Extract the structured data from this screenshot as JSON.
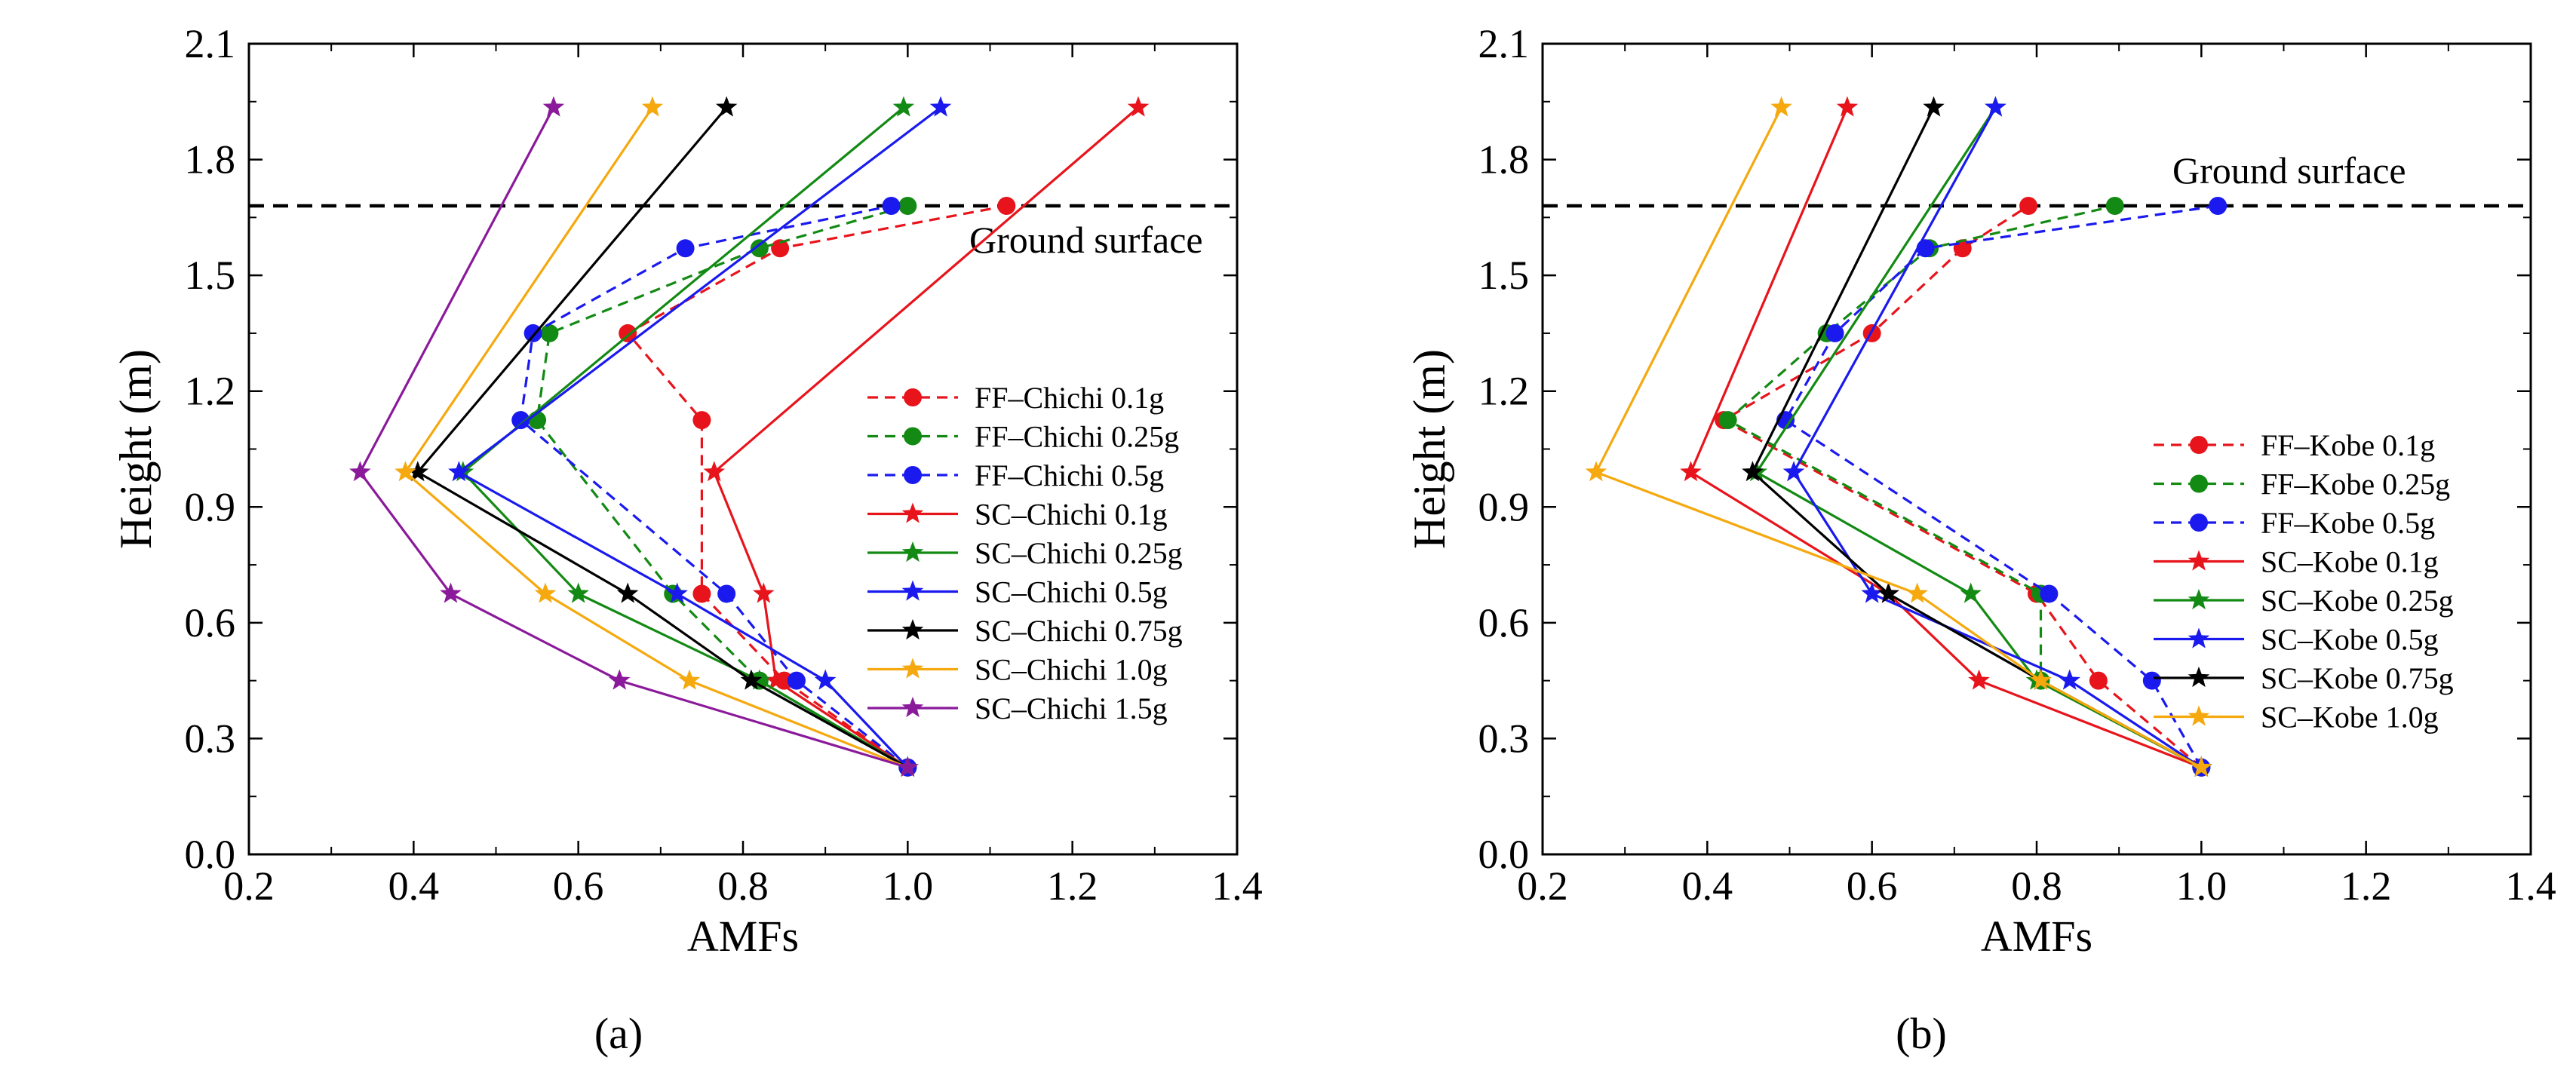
{
  "chart_data": [
    {
      "type": "line",
      "panel_label": "(a)",
      "xlabel": "AMFs",
      "ylabel": "Height (m)",
      "xlim": [
        0.2,
        1.4
      ],
      "ylim": [
        0.0,
        2.1
      ],
      "xticks": [
        "0.2",
        "0.4",
        "0.6",
        "0.8",
        "1.0",
        "1.2",
        "1.4"
      ],
      "yticks": [
        "0.0",
        "0.3",
        "0.6",
        "0.9",
        "1.2",
        "1.5",
        "1.8",
        "2.1"
      ],
      "grid": false,
      "legend_position": "right",
      "reference_line": {
        "y": 1.68,
        "label": "Ground surface"
      },
      "series": [
        {
          "name": "FF–Chichi 0.1g",
          "color": "#e8141c",
          "dashed": true,
          "marker": "circle",
          "points": [
            [
              1.0,
              0.225
            ],
            [
              0.85,
              0.45
            ],
            [
              0.75,
              0.675
            ],
            [
              0.75,
              1.125
            ],
            [
              0.66,
              1.35
            ],
            [
              0.845,
              1.57
            ],
            [
              1.12,
              1.68
            ]
          ]
        },
        {
          "name": "FF–Chichi 0.25g",
          "color": "#138a13",
          "dashed": true,
          "marker": "circle",
          "points": [
            [
              1.0,
              0.225
            ],
            [
              0.82,
              0.45
            ],
            [
              0.715,
              0.675
            ],
            [
              0.55,
              1.125
            ],
            [
              0.565,
              1.35
            ],
            [
              0.82,
              1.57
            ],
            [
              1.0,
              1.68
            ]
          ]
        },
        {
          "name": "FF–Chichi 0.5g",
          "color": "#1a1aef",
          "dashed": true,
          "marker": "circle",
          "points": [
            [
              1.0,
              0.225
            ],
            [
              0.865,
              0.45
            ],
            [
              0.78,
              0.675
            ],
            [
              0.53,
              1.125
            ],
            [
              0.545,
              1.35
            ],
            [
              0.73,
              1.57
            ],
            [
              0.98,
              1.68
            ]
          ]
        },
        {
          "name": "SC–Chichi 0.1g",
          "color": "#e8141c",
          "dashed": false,
          "marker": "star",
          "points": [
            [
              1.0,
              0.225
            ],
            [
              0.84,
              0.45
            ],
            [
              0.825,
              0.675
            ],
            [
              0.765,
              0.99
            ],
            [
              1.28,
              1.935
            ]
          ]
        },
        {
          "name": "SC–Chichi 0.25g",
          "color": "#138a13",
          "dashed": false,
          "marker": "star",
          "points": [
            [
              1.0,
              0.225
            ],
            [
              0.82,
              0.45
            ],
            [
              0.6,
              0.675
            ],
            [
              0.46,
              0.99
            ],
            [
              0.995,
              1.935
            ]
          ]
        },
        {
          "name": "SC–Chichi 0.5g",
          "color": "#1a1aef",
          "dashed": false,
          "marker": "star",
          "points": [
            [
              1.0,
              0.225
            ],
            [
              0.9,
              0.45
            ],
            [
              0.72,
              0.675
            ],
            [
              0.455,
              0.99
            ],
            [
              1.04,
              1.935
            ]
          ]
        },
        {
          "name": "SC–Chichi 0.75g",
          "color": "#000000",
          "dashed": false,
          "marker": "star",
          "points": [
            [
              1.0,
              0.225
            ],
            [
              0.81,
              0.45
            ],
            [
              0.66,
              0.675
            ],
            [
              0.405,
              0.99
            ],
            [
              0.78,
              1.935
            ]
          ]
        },
        {
          "name": "SC–Chichi 1.0g",
          "color": "#f5a90f",
          "dashed": false,
          "marker": "star",
          "points": [
            [
              1.0,
              0.225
            ],
            [
              0.735,
              0.45
            ],
            [
              0.56,
              0.675
            ],
            [
              0.39,
              0.99
            ],
            [
              0.69,
              1.935
            ]
          ]
        },
        {
          "name": "SC–Chichi 1.5g",
          "color": "#8b1a9b",
          "dashed": false,
          "marker": "star",
          "points": [
            [
              1.0,
              0.225
            ],
            [
              0.65,
              0.45
            ],
            [
              0.445,
              0.675
            ],
            [
              0.335,
              0.99
            ],
            [
              0.57,
              1.935
            ]
          ]
        }
      ]
    },
    {
      "type": "line",
      "panel_label": "(b)",
      "xlabel": "AMFs",
      "ylabel": "Height (m)",
      "xlim": [
        0.2,
        1.4
      ],
      "ylim": [
        0.0,
        2.1
      ],
      "xticks": [
        "0.2",
        "0.4",
        "0.6",
        "0.8",
        "1.0",
        "1.2",
        "1.4"
      ],
      "yticks": [
        "0.0",
        "0.3",
        "0.6",
        "0.9",
        "1.2",
        "1.5",
        "1.8",
        "2.1"
      ],
      "grid": false,
      "legend_position": "right",
      "reference_line": {
        "y": 1.68,
        "label": "Ground surface"
      },
      "series": [
        {
          "name": "FF–Kobe 0.1g",
          "color": "#e8141c",
          "dashed": true,
          "marker": "circle",
          "points": [
            [
              1.0,
              0.225
            ],
            [
              0.875,
              0.45
            ],
            [
              0.8,
              0.675
            ],
            [
              0.42,
              1.125
            ],
            [
              0.6,
              1.35
            ],
            [
              0.71,
              1.57
            ],
            [
              0.79,
              1.68
            ]
          ]
        },
        {
          "name": "FF–Kobe 0.25g",
          "color": "#138a13",
          "dashed": true,
          "marker": "circle",
          "points": [
            [
              1.0,
              0.225
            ],
            [
              0.805,
              0.45
            ],
            [
              0.805,
              0.675
            ],
            [
              0.425,
              1.125
            ],
            [
              0.545,
              1.35
            ],
            [
              0.67,
              1.57
            ],
            [
              0.895,
              1.68
            ]
          ]
        },
        {
          "name": "FF–Kobe 0.5g",
          "color": "#1a1aef",
          "dashed": true,
          "marker": "circle",
          "points": [
            [
              1.0,
              0.225
            ],
            [
              0.94,
              0.45
            ],
            [
              0.815,
              0.675
            ],
            [
              0.495,
              1.125
            ],
            [
              0.555,
              1.35
            ],
            [
              0.665,
              1.57
            ],
            [
              1.02,
              1.68
            ]
          ]
        },
        {
          "name": "SC–Kobe 0.1g",
          "color": "#e8141c",
          "dashed": false,
          "marker": "star",
          "points": [
            [
              1.0,
              0.225
            ],
            [
              0.73,
              0.45
            ],
            [
              0.62,
              0.675
            ],
            [
              0.38,
              0.99
            ],
            [
              0.57,
              1.935
            ]
          ]
        },
        {
          "name": "SC–Kobe 0.25g",
          "color": "#138a13",
          "dashed": false,
          "marker": "star",
          "points": [
            [
              1.0,
              0.225
            ],
            [
              0.8,
              0.45
            ],
            [
              0.72,
              0.675
            ],
            [
              0.46,
              0.99
            ],
            [
              0.75,
              1.935
            ]
          ]
        },
        {
          "name": "SC–Kobe 0.5g",
          "color": "#1a1aef",
          "dashed": false,
          "marker": "star",
          "points": [
            [
              1.0,
              0.225
            ],
            [
              0.84,
              0.45
            ],
            [
              0.6,
              0.675
            ],
            [
              0.505,
              0.99
            ],
            [
              0.75,
              1.935
            ]
          ]
        },
        {
          "name": "SC–Kobe 0.75g",
          "color": "#000000",
          "dashed": false,
          "marker": "star",
          "points": [
            [
              1.0,
              0.225
            ],
            [
              0.805,
              0.45
            ],
            [
              0.62,
              0.675
            ],
            [
              0.455,
              0.99
            ],
            [
              0.675,
              1.935
            ]
          ]
        },
        {
          "name": "SC–Kobe 1.0g",
          "color": "#f5a90f",
          "dashed": false,
          "marker": "star",
          "points": [
            [
              1.0,
              0.225
            ],
            [
              0.805,
              0.45
            ],
            [
              0.655,
              0.675
            ],
            [
              0.265,
              0.99
            ],
            [
              0.49,
              1.935
            ]
          ]
        }
      ]
    }
  ]
}
